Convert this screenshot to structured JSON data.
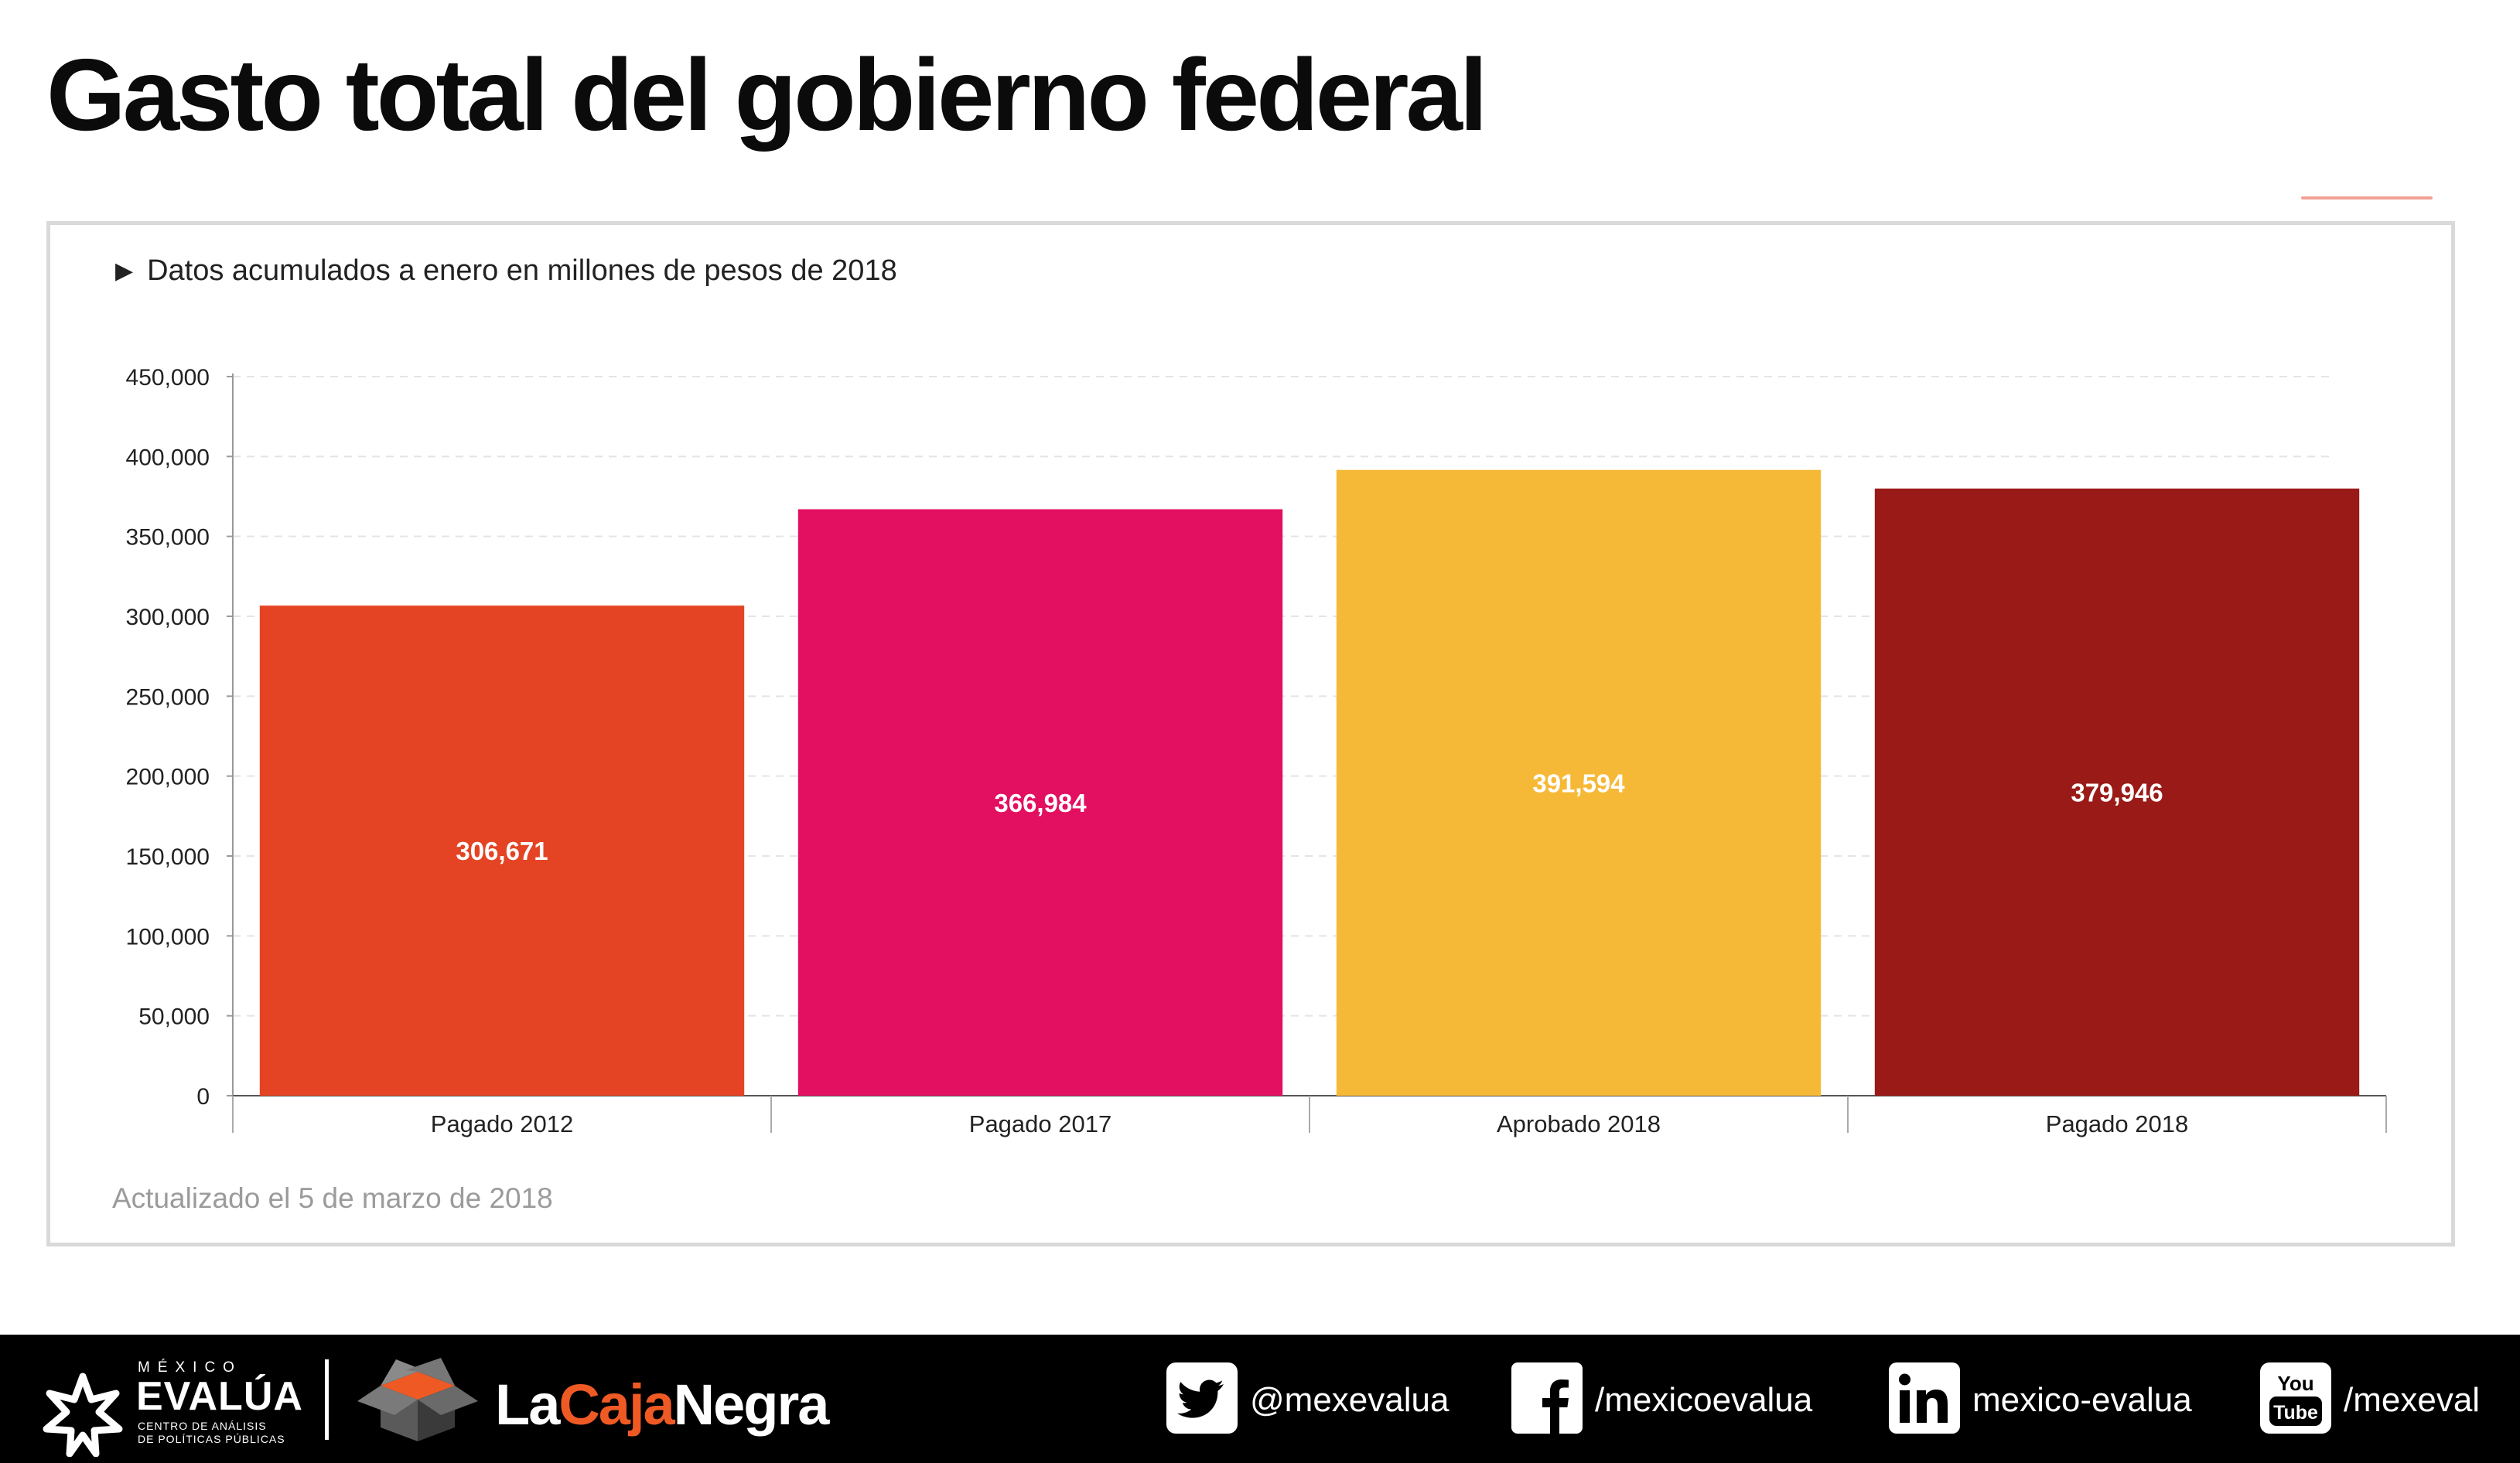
{
  "title": "Gasto total del gobierno federal",
  "subtitle": "Datos acumulados a enero en millones de pesos de 2018",
  "updated_note": "Actualizado el 5 de marzo de 2018",
  "chart_data": {
    "type": "bar",
    "categories": [
      "Pagado 2012",
      "Pagado 2017",
      "Aprobado 2018",
      "Pagado 2018"
    ],
    "values": [
      306671,
      366984,
      391594,
      379946
    ],
    "value_labels": [
      "306,671",
      "366,984",
      "391,594",
      "379,946"
    ],
    "colors": [
      "#e44424",
      "#e30f60",
      "#f6b937",
      "#9a1a17"
    ],
    "ylim": [
      0,
      450000
    ],
    "yticks": [
      0,
      50000,
      100000,
      150000,
      200000,
      250000,
      300000,
      350000,
      400000,
      450000
    ],
    "ytick_labels": [
      "0",
      "50,000",
      "100,000",
      "150,000",
      "200,000",
      "250,000",
      "300,000",
      "350,000",
      "400,000",
      "450,000"
    ],
    "grid": true,
    "legend": "none"
  },
  "footer": {
    "mx_small": "MÉXICO",
    "mx_big": "EVALÚA",
    "mx_tagline_1": "CENTRO DE ANÁLISIS",
    "mx_tagline_2": "DE POLÍTICAS PÚBLICAS",
    "lcn_part1": "La",
    "lcn_part2": "Caja",
    "lcn_part3": "Negra",
    "social": [
      {
        "icon": "twitter-icon",
        "handle": "@mexevalua"
      },
      {
        "icon": "facebook-icon",
        "handle": "/mexicoevalua"
      },
      {
        "icon": "linkedin-icon",
        "handle": "mexico-evalua"
      },
      {
        "icon": "youtube-icon",
        "handle": "/mexeval"
      }
    ]
  }
}
